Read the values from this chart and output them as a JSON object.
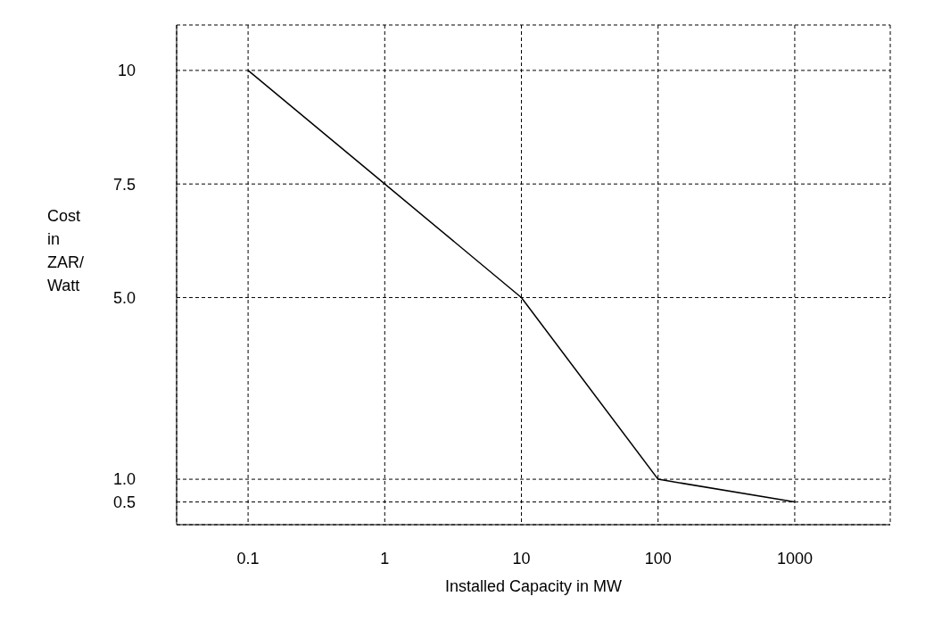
{
  "chart_data": {
    "type": "line",
    "xlabel": "Installed Capacity in MW",
    "ylabel": "Cost in ZAR/ Watt",
    "x": [
      0.1,
      1,
      10,
      100,
      1000
    ],
    "series": [
      {
        "color": "#000000",
        "values": [
          10,
          7.5,
          5.0,
          1.0,
          0.5
        ]
      }
    ],
    "log": "x",
    "xlim": [
      0.03,
      5000
    ],
    "xticks": [
      0.1,
      1,
      10,
      100,
      1000
    ],
    "ylim": [
      0,
      11
    ],
    "yticks": [
      0.5,
      {
        "value": 1,
        "label": "1.0"
      },
      {
        "value": 5,
        "label": "5.0"
      },
      7.5,
      10
    ],
    "grid": true,
    "marker": "none",
    "line_style": "solid"
  }
}
